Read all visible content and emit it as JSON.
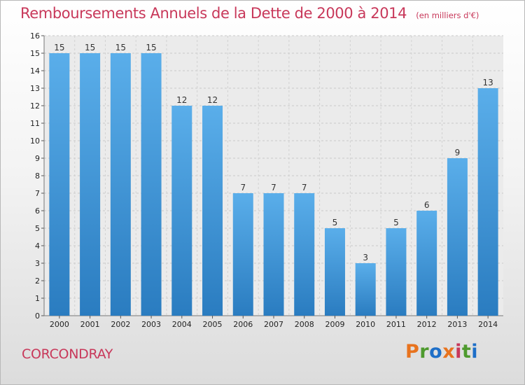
{
  "header": {
    "title": "Remboursements Annuels de la Dette de 2000 à 2014",
    "unit": "(en milliers d'€)"
  },
  "footer": {
    "commune": "CORCONDRAY",
    "brand": "Proxiti",
    "brand_colors": [
      "#e8731e",
      "#4e9a2e",
      "#1e6fc8",
      "#e8731e",
      "#c8385a",
      "#4e9a2e",
      "#1e6fc8"
    ]
  },
  "colors": {
    "title": "#c8385a",
    "bar_light": "#5aaeea",
    "bar_dark": "#2a7cc0"
  },
  "chart_data": {
    "type": "bar",
    "title": "Remboursements Annuels de la Dette de 2000 à 2014",
    "xlabel": "",
    "ylabel": "",
    "categories": [
      "2000",
      "2001",
      "2002",
      "2003",
      "2004",
      "2005",
      "2006",
      "2007",
      "2008",
      "2009",
      "2010",
      "2011",
      "2012",
      "2013",
      "2014"
    ],
    "values": [
      15,
      15,
      15,
      15,
      12,
      12,
      7,
      7,
      7,
      5,
      3,
      5,
      6,
      9,
      13
    ],
    "ylim": [
      0,
      16
    ],
    "yticks": [
      0,
      1,
      2,
      3,
      4,
      5,
      6,
      7,
      8,
      9,
      10,
      11,
      12,
      13,
      14,
      15,
      16
    ],
    "grid": true,
    "legend": "none"
  }
}
